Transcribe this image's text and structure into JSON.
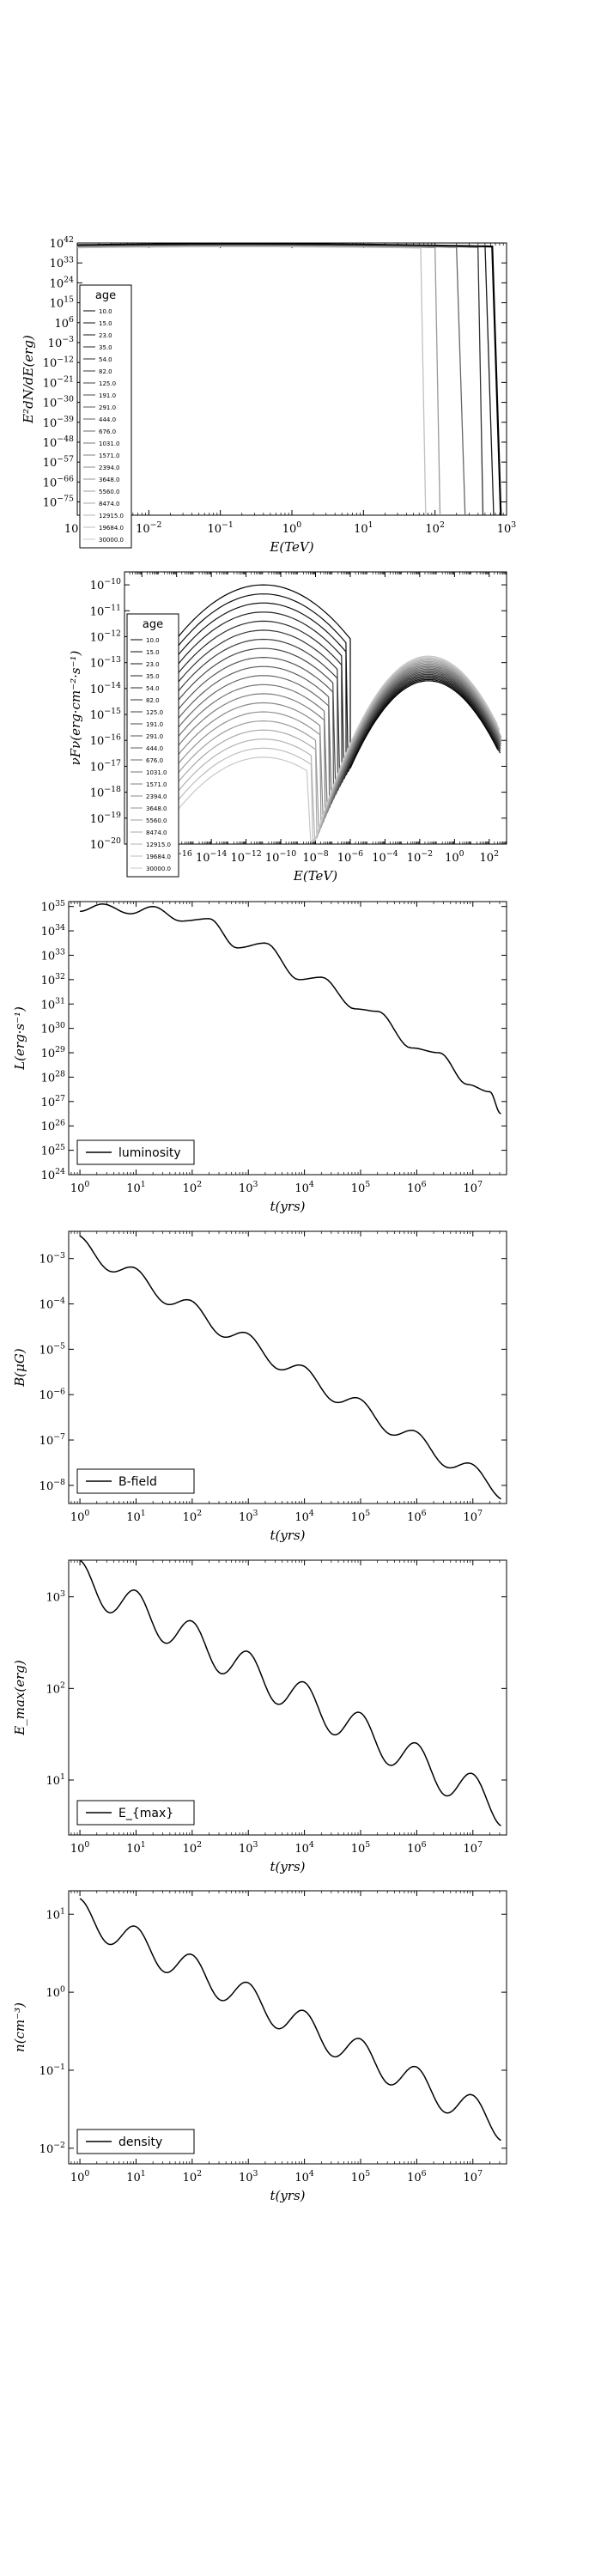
{
  "chart_data": [
    {
      "type": "line",
      "xlabel": "E(TeV)",
      "ylabel": "E²dN/dE(erg)",
      "xscale": "log",
      "yscale": "log",
      "xlim_exp": [
        -3,
        3
      ],
      "ylim_exp": [
        -81,
        42
      ],
      "xticks_exp": [
        -3,
        -2,
        -1,
        0,
        1,
        2,
        3
      ],
      "yticks_exp": [
        42,
        33,
        24,
        15,
        6,
        -3,
        -12,
        -21,
        -30,
        -39,
        -48,
        -57,
        -66,
        -75
      ],
      "legend": {
        "title": "age",
        "placement": "left",
        "entries": [
          "10.0",
          "15.0",
          "23.0",
          "35.0",
          "54.0",
          "82.0",
          "125.0",
          "191.0",
          "291.0",
          "444.0",
          "676.0",
          "1031.0",
          "1571.0",
          "2394.0",
          "3648.0",
          "5560.0",
          "8474.0",
          "12915.0",
          "19684.0",
          "30000.0"
        ]
      },
      "series": [
        {
          "label_index": 0,
          "peak": 41.5,
          "cutoff_log": 2.9,
          "color": "#000000"
        },
        {
          "label_index": 4,
          "peak": 41.3,
          "cutoff_log": 2.8,
          "color": "#1a1a1a"
        },
        {
          "label_index": 8,
          "peak": 41.1,
          "cutoff_log": 2.65,
          "color": "#333333"
        },
        {
          "label_index": 12,
          "peak": 40.9,
          "cutoff_log": 2.4,
          "color": "#666666"
        },
        {
          "label_index": 16,
          "peak": 40.6,
          "cutoff_log": 2.05,
          "color": "#999999"
        },
        {
          "label_index": 19,
          "peak": 40.3,
          "cutoff_log": 1.85,
          "color": "#c0c0c0"
        }
      ]
    },
    {
      "type": "line",
      "xlabel": "E(TeV)",
      "ylabel": "νFν(erg·cm⁻²·s⁻¹)",
      "xscale": "log",
      "yscale": "log",
      "xlim_exp": [
        -19,
        3
      ],
      "ylim_exp": [
        -20,
        -9.5
      ],
      "xticks_exp": [
        -18,
        -16,
        -14,
        -12,
        -10,
        -8,
        -6,
        -4,
        -2,
        0,
        2
      ],
      "yticks_exp": [
        -10,
        -11,
        -12,
        -13,
        -14,
        -15,
        -16,
        -17,
        -18,
        -19,
        -20
      ],
      "legend": {
        "title": "age",
        "placement": "left",
        "entries": [
          "10.0",
          "15.0",
          "23.0",
          "35.0",
          "54.0",
          "82.0",
          "125.0",
          "191.0",
          "291.0",
          "444.0",
          "676.0",
          "1031.0",
          "1571.0",
          "2394.0",
          "3648.0",
          "5560.0",
          "8474.0",
          "12915.0",
          "19684.0",
          "30000.0"
        ]
      }
    },
    {
      "type": "line",
      "xlabel": "t(yrs)",
      "ylabel": "L(erg·s⁻¹)",
      "legend_label": "luminosity",
      "xscale": "log",
      "yscale": "log",
      "xlim_exp": [
        -0.2,
        7.6
      ],
      "ylim_exp": [
        24,
        35.2
      ],
      "xticks_exp": [
        0,
        1,
        2,
        3,
        4,
        5,
        6,
        7
      ],
      "yticks_exp": [
        35,
        34,
        33,
        32,
        31,
        30,
        29,
        28,
        27,
        26,
        25,
        24
      ],
      "points_log": [
        [
          0.0,
          34.8
        ],
        [
          0.4,
          35.1
        ],
        [
          0.9,
          34.7
        ],
        [
          1.3,
          35.0
        ],
        [
          1.8,
          34.4
        ],
        [
          2.3,
          34.5
        ],
        [
          2.8,
          33.3
        ],
        [
          3.3,
          33.5
        ],
        [
          3.9,
          32.0
        ],
        [
          4.3,
          32.1
        ],
        [
          4.9,
          30.8
        ],
        [
          5.3,
          30.7
        ],
        [
          5.9,
          29.2
        ],
        [
          6.4,
          29.0
        ],
        [
          6.9,
          27.7
        ],
        [
          7.3,
          27.4
        ],
        [
          7.5,
          26.5
        ]
      ]
    },
    {
      "type": "line",
      "xlabel": "t(yrs)",
      "ylabel": "B(μG)",
      "legend_label": "B-field",
      "xscale": "log",
      "yscale": "log",
      "xlim_exp": [
        -0.2,
        7.6
      ],
      "ylim_exp": [
        -8.4,
        -2.4
      ],
      "xticks_exp": [
        0,
        1,
        2,
        3,
        4,
        5,
        6,
        7
      ],
      "yticks_exp": [
        -3,
        -4,
        -5,
        -6,
        -7,
        -8
      ]
    },
    {
      "type": "line",
      "xlabel": "t(yrs)",
      "ylabel": "E_max(erg)",
      "legend_label": "E_{max}",
      "xscale": "log",
      "yscale": "log",
      "xlim_exp": [
        -0.2,
        7.6
      ],
      "ylim_exp": [
        0.4,
        3.4
      ],
      "xticks_exp": [
        0,
        1,
        2,
        3,
        4,
        5,
        6,
        7
      ],
      "yticks_exp": [
        3,
        2,
        1
      ]
    },
    {
      "type": "line",
      "xlabel": "t(yrs)",
      "ylabel": "n(cm⁻³)",
      "legend_label": "density",
      "xscale": "log",
      "yscale": "log",
      "xlim_exp": [
        -0.2,
        7.6
      ],
      "ylim_exp": [
        -2.2,
        1.3
      ],
      "xticks_exp": [
        0,
        1,
        2,
        3,
        4,
        5,
        6,
        7
      ],
      "yticks_exp": [
        1,
        0,
        -1,
        -2
      ]
    }
  ]
}
